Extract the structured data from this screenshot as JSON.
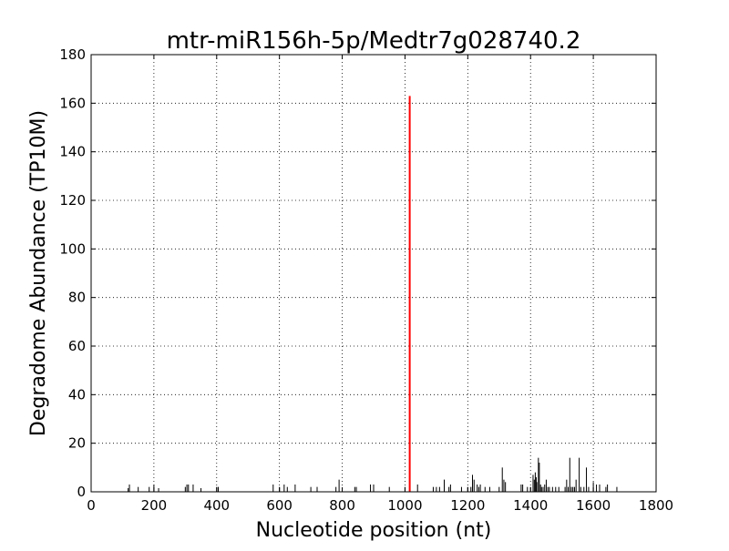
{
  "chart_data": {
    "type": "bar",
    "title": "mtr-miR156h-5p/Medtr7g028740.2",
    "xlabel": "Nucleotide position (nt)",
    "ylabel": "Degradome Abundance (TP10M)",
    "xlim": [
      0,
      1800
    ],
    "ylim": [
      0,
      180
    ],
    "xticks": [
      0,
      200,
      400,
      600,
      800,
      1000,
      1200,
      1400,
      1600,
      1800
    ],
    "yticks": [
      0,
      20,
      40,
      60,
      80,
      100,
      120,
      140,
      160,
      180
    ],
    "xtick_labels": [
      "0",
      "200",
      "400",
      "600",
      "800",
      "1000",
      "1200",
      "1400",
      "1600",
      "1800"
    ],
    "ytick_labels": [
      "0",
      "20",
      "40",
      "60",
      "80",
      "100",
      "120",
      "140",
      "160",
      "180"
    ],
    "grid": true,
    "colors": {
      "background": "#000000",
      "highlight": "#ff0000",
      "grid": "#000000"
    },
    "series": [
      {
        "color": "#000000",
        "x": [
          118,
          122,
          150,
          185,
          200,
          215,
          300,
          305,
          310,
          325,
          350,
          400,
          405,
          580,
          600,
          615,
          625,
          650,
          700,
          720,
          780,
          790,
          840,
          845,
          890,
          900,
          950,
          1000,
          1040,
          1090,
          1100,
          1110,
          1125,
          1140,
          1145,
          1180,
          1200,
          1210,
          1215,
          1220,
          1230,
          1235,
          1240,
          1255,
          1270,
          1300,
          1310,
          1315,
          1320,
          1370,
          1375,
          1390,
          1400,
          1408,
          1412,
          1415,
          1418,
          1420,
          1425,
          1428,
          1432,
          1435,
          1440,
          1445,
          1450,
          1455,
          1460,
          1470,
          1480,
          1490,
          1510,
          1515,
          1520,
          1525,
          1530,
          1535,
          1540,
          1545,
          1555,
          1560,
          1570,
          1578,
          1585,
          1600,
          1610,
          1620,
          1640,
          1645,
          1675
        ],
        "values": [
          1.5,
          3,
          2,
          2,
          3,
          1.5,
          2,
          3,
          3,
          3,
          1.5,
          2,
          2,
          3,
          2,
          3,
          2,
          3,
          2,
          2,
          2,
          5,
          2,
          2,
          3,
          3,
          2,
          2,
          3,
          2,
          2,
          2,
          5,
          2,
          3,
          2,
          2,
          2,
          7,
          5,
          3,
          2,
          3,
          2,
          2,
          2,
          10,
          5,
          4,
          3,
          3,
          2,
          2,
          7,
          5,
          8,
          6,
          4,
          14,
          12,
          3,
          2,
          2,
          3,
          5,
          2,
          2,
          2,
          2,
          2,
          2,
          5,
          2,
          14,
          2,
          2,
          2,
          5,
          14,
          2,
          2,
          10,
          2,
          4,
          3,
          3,
          2,
          3,
          2
        ]
      },
      {
        "color": "#ff0000",
        "x": [
          1015
        ],
        "values": [
          163
        ]
      }
    ]
  }
}
